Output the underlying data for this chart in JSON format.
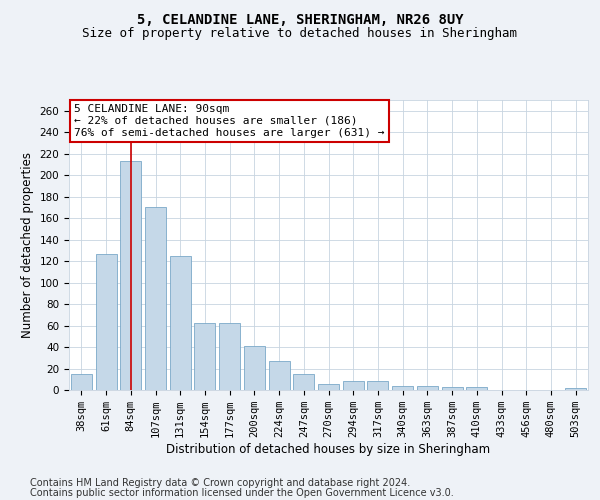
{
  "title": "5, CELANDINE LANE, SHERINGHAM, NR26 8UY",
  "subtitle": "Size of property relative to detached houses in Sheringham",
  "xlabel": "Distribution of detached houses by size in Sheringham",
  "ylabel": "Number of detached properties",
  "categories": [
    "38sqm",
    "61sqm",
    "84sqm",
    "107sqm",
    "131sqm",
    "154sqm",
    "177sqm",
    "200sqm",
    "224sqm",
    "247sqm",
    "270sqm",
    "294sqm",
    "317sqm",
    "340sqm",
    "363sqm",
    "387sqm",
    "410sqm",
    "433sqm",
    "456sqm",
    "480sqm",
    "503sqm"
  ],
  "values": [
    15,
    127,
    213,
    170,
    125,
    62,
    62,
    41,
    27,
    15,
    6,
    8,
    8,
    4,
    4,
    3,
    3,
    0,
    0,
    0,
    2
  ],
  "bar_color": "#c5d8e8",
  "bar_edge_color": "#7ba9c8",
  "highlight_bar_index": 2,
  "highlight_line_color": "#cc0000",
  "annotation_line1": "5 CELANDINE LANE: 90sqm",
  "annotation_line2": "← 22% of detached houses are smaller (186)",
  "annotation_line3": "76% of semi-detached houses are larger (631) →",
  "annotation_box_color": "#ffffff",
  "annotation_box_edge_color": "#cc0000",
  "ylim": [
    0,
    270
  ],
  "yticks": [
    0,
    20,
    40,
    60,
    80,
    100,
    120,
    140,
    160,
    180,
    200,
    220,
    240,
    260
  ],
  "background_color": "#eef2f7",
  "plot_bg_color": "#ffffff",
  "grid_color": "#c8d4e0",
  "footnote1": "Contains HM Land Registry data © Crown copyright and database right 2024.",
  "footnote2": "Contains public sector information licensed under the Open Government Licence v3.0.",
  "title_fontsize": 10,
  "subtitle_fontsize": 9,
  "xlabel_fontsize": 8.5,
  "ylabel_fontsize": 8.5,
  "tick_fontsize": 7.5,
  "annotation_fontsize": 8,
  "footnote_fontsize": 7
}
